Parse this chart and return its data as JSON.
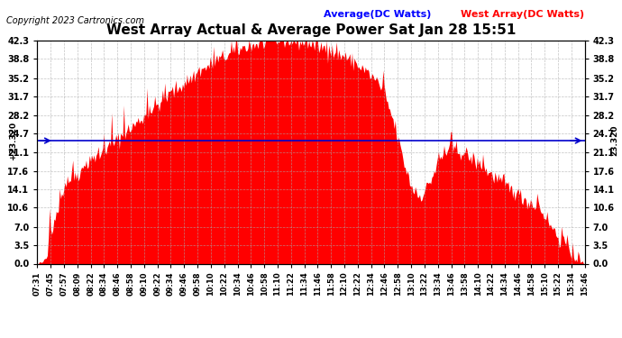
{
  "title": "West Array Actual & Average Power Sat Jan 28 15:51",
  "copyright": "Copyright 2023 Cartronics.com",
  "legend_average": "Average(DC Watts)",
  "legend_west": "West Array(DC Watts)",
  "average_value": 23.32,
  "yticks": [
    0.0,
    3.5,
    7.0,
    10.6,
    14.1,
    17.6,
    21.1,
    24.7,
    28.2,
    31.7,
    35.2,
    38.8,
    42.3
  ],
  "ymin": 0.0,
  "ymax": 42.3,
  "area_color": "#ff0000",
  "average_line_color": "#0000cc",
  "background_color": "#ffffff",
  "grid_color": "#aaaaaa",
  "title_color": "#000000",
  "legend_avg_color": "#0000ff",
  "legend_west_color": "#ff0000",
  "left_label_color": "#000000",
  "avg_label_value": "23.320",
  "start_time": "07:31",
  "end_time": "15:46",
  "x_tick_labels": [
    "07:31",
    "07:45",
    "07:57",
    "08:09",
    "08:22",
    "08:34",
    "08:46",
    "08:58",
    "09:10",
    "09:22",
    "09:34",
    "09:46",
    "09:58",
    "10:10",
    "10:22",
    "10:34",
    "10:46",
    "10:58",
    "11:10",
    "11:22",
    "11:34",
    "11:46",
    "11:58",
    "12:10",
    "12:22",
    "12:34",
    "12:46",
    "12:58",
    "13:10",
    "13:22",
    "13:34",
    "13:46",
    "13:58",
    "14:10",
    "14:22",
    "14:34",
    "14:46",
    "14:58",
    "15:10",
    "15:22",
    "15:34",
    "15:46"
  ]
}
